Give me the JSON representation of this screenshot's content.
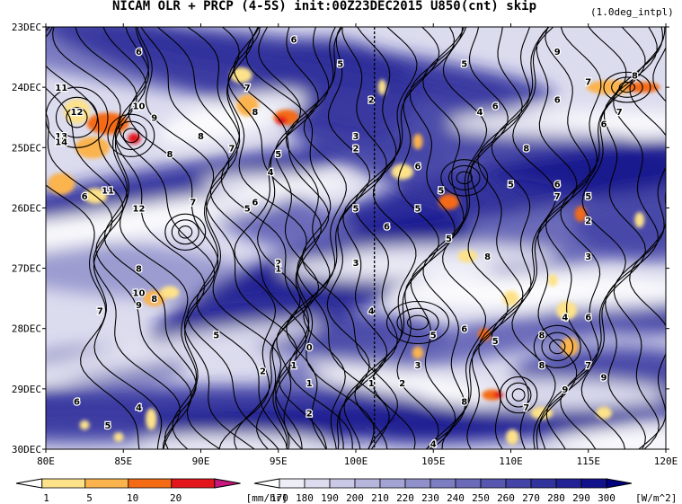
{
  "title": "NICAM  OLR + PRCP (4-5S) init:00Z23DEC2015 U850(cnt) skip",
  "subtitle": "(1.0deg_intpl)",
  "chart_data": {
    "type": "heatmap",
    "title": "NICAM  OLR + PRCP (4-5S) init:00Z23DEC2015 U850(cnt) skip",
    "subtitle": "(1.0deg_intpl)",
    "x_ticks": [
      "80E",
      "85E",
      "90E",
      "95E",
      "100E",
      "105E",
      "110E",
      "115E",
      "120E"
    ],
    "x_values": [
      80,
      85,
      90,
      95,
      100,
      105,
      110,
      115,
      120
    ],
    "y_ticks": [
      "23DEC",
      "24DEC",
      "25DEC",
      "26DEC",
      "27DEC",
      "28DEC",
      "29DEC",
      "30DEC"
    ],
    "y_values": [
      23,
      24,
      25,
      26,
      27,
      28,
      29,
      30
    ],
    "xlim": [
      80,
      120
    ],
    "ylim": [
      30,
      23
    ],
    "reference_line_lon": 101.2,
    "precip_colorbar": {
      "labels": [
        "1",
        "5",
        "10",
        "20"
      ],
      "units": "[mm/hr]",
      "colors": [
        "#ffffff",
        "#fde28a",
        "#fbb34d",
        "#f46b14",
        "#e3161b",
        "#c9157e"
      ]
    },
    "olr_colorbar": {
      "labels": [
        "170",
        "180",
        "190",
        "200",
        "210",
        "220",
        "230",
        "240",
        "250",
        "260",
        "270",
        "280",
        "290",
        "300"
      ],
      "units": "[W/m^2]",
      "colors": [
        "#ffffff",
        "#eeeef7",
        "#dcdcef",
        "#c9c9e6",
        "#b6b6dd",
        "#a3a3d4",
        "#9090cb",
        "#7d7dc2",
        "#6a6ab9",
        "#5757b0",
        "#4444a7",
        "#33339e",
        "#222295",
        "#11118c",
        "#000080"
      ]
    },
    "contour_labels": [
      {
        "text": "6",
        "x": 86,
        "y": 23.4
      },
      {
        "text": "6",
        "x": 96,
        "y": 23.2
      },
      {
        "text": "5",
        "x": 99,
        "y": 23.6
      },
      {
        "text": "2",
        "x": 101,
        "y": 24.2
      },
      {
        "text": "5",
        "x": 107,
        "y": 23.6
      },
      {
        "text": "9",
        "x": 113,
        "y": 23.4
      },
      {
        "text": "7",
        "x": 115,
        "y": 23.9
      },
      {
        "text": "8",
        "x": 118,
        "y": 23.8
      },
      {
        "text": "7",
        "x": 117,
        "y": 24.4
      },
      {
        "text": "11",
        "x": 81,
        "y": 24.0
      },
      {
        "text": "12",
        "x": 82,
        "y": 24.4
      },
      {
        "text": "10",
        "x": 86,
        "y": 24.3
      },
      {
        "text": "9",
        "x": 87,
        "y": 24.5
      },
      {
        "text": "7",
        "x": 93,
        "y": 24.0
      },
      {
        "text": "8",
        "x": 93.5,
        "y": 24.4
      },
      {
        "text": "13",
        "x": 81,
        "y": 24.8
      },
      {
        "text": "14",
        "x": 81,
        "y": 24.9
      },
      {
        "text": "8",
        "x": 88,
        "y": 25.1
      },
      {
        "text": "7",
        "x": 92,
        "y": 25.0
      },
      {
        "text": "8",
        "x": 90,
        "y": 24.8
      },
      {
        "text": "4",
        "x": 94.5,
        "y": 25.4
      },
      {
        "text": "5",
        "x": 95,
        "y": 25.1
      },
      {
        "text": "3",
        "x": 100,
        "y": 24.8
      },
      {
        "text": "2",
        "x": 100,
        "y": 25.0
      },
      {
        "text": "4",
        "x": 108,
        "y": 24.4
      },
      {
        "text": "6",
        "x": 109,
        "y": 24.3
      },
      {
        "text": "8",
        "x": 111,
        "y": 25.0
      },
      {
        "text": "6",
        "x": 113,
        "y": 24.2
      },
      {
        "text": "6",
        "x": 116,
        "y": 24.6
      },
      {
        "text": "5",
        "x": 110,
        "y": 25.6
      },
      {
        "text": "6",
        "x": 113,
        "y": 25.6
      },
      {
        "text": "7",
        "x": 113,
        "y": 25.8
      },
      {
        "text": "11",
        "x": 84,
        "y": 25.7
      },
      {
        "text": "12",
        "x": 86,
        "y": 26.0
      },
      {
        "text": "6",
        "x": 82.5,
        "y": 25.8
      },
      {
        "text": "7",
        "x": 89.5,
        "y": 25.9
      },
      {
        "text": "6",
        "x": 93.5,
        "y": 25.9
      },
      {
        "text": "5",
        "x": 93,
        "y": 26.0
      },
      {
        "text": "5",
        "x": 100,
        "y": 26.0
      },
      {
        "text": "5",
        "x": 104,
        "y": 26.0
      },
      {
        "text": "5",
        "x": 105.5,
        "y": 25.7
      },
      {
        "text": "6",
        "x": 104,
        "y": 25.3
      },
      {
        "text": "5",
        "x": 115,
        "y": 25.8
      },
      {
        "text": "2",
        "x": 115,
        "y": 26.2
      },
      {
        "text": "8",
        "x": 86,
        "y": 27.0
      },
      {
        "text": "2",
        "x": 95,
        "y": 26.9
      },
      {
        "text": "1",
        "x": 95,
        "y": 27.0
      },
      {
        "text": "3",
        "x": 100,
        "y": 26.9
      },
      {
        "text": "5",
        "x": 106,
        "y": 26.5
      },
      {
        "text": "6",
        "x": 102,
        "y": 26.3
      },
      {
        "text": "8",
        "x": 108.5,
        "y": 26.8
      },
      {
        "text": "3",
        "x": 115,
        "y": 26.8
      },
      {
        "text": "10",
        "x": 86,
        "y": 27.4
      },
      {
        "text": "9",
        "x": 86,
        "y": 27.6
      },
      {
        "text": "8",
        "x": 87,
        "y": 27.5
      },
      {
        "text": "7",
        "x": 83.5,
        "y": 27.7
      },
      {
        "text": "4",
        "x": 101,
        "y": 27.7
      },
      {
        "text": "5",
        "x": 105,
        "y": 28.1
      },
      {
        "text": "6",
        "x": 107,
        "y": 28.0
      },
      {
        "text": "5",
        "x": 109,
        "y": 28.2
      },
      {
        "text": "8",
        "x": 112,
        "y": 28.1
      },
      {
        "text": "4",
        "x": 113.5,
        "y": 27.8
      },
      {
        "text": "6",
        "x": 115,
        "y": 27.8
      },
      {
        "text": "5",
        "x": 91,
        "y": 28.1
      },
      {
        "text": "0",
        "x": 97,
        "y": 28.3
      },
      {
        "text": "1",
        "x": 96,
        "y": 28.6
      },
      {
        "text": "2",
        "x": 94,
        "y": 28.7
      },
      {
        "text": "3",
        "x": 104,
        "y": 28.6
      },
      {
        "text": "1",
        "x": 101,
        "y": 28.9
      },
      {
        "text": "2",
        "x": 103,
        "y": 28.9
      },
      {
        "text": "1",
        "x": 97,
        "y": 28.9
      },
      {
        "text": "7",
        "x": 115,
        "y": 28.6
      },
      {
        "text": "9",
        "x": 116,
        "y": 28.8
      },
      {
        "text": "8",
        "x": 112,
        "y": 28.6
      },
      {
        "text": "9",
        "x": 113.5,
        "y": 29.0
      },
      {
        "text": "6",
        "x": 82,
        "y": 29.2
      },
      {
        "text": "4",
        "x": 86,
        "y": 29.3
      },
      {
        "text": "2",
        "x": 97,
        "y": 29.4
      },
      {
        "text": "7",
        "x": 111,
        "y": 29.3
      },
      {
        "text": "8",
        "x": 107,
        "y": 29.2
      },
      {
        "text": "5",
        "x": 84,
        "y": 29.6
      },
      {
        "text": "4",
        "x": 105,
        "y": 29.9
      }
    ]
  }
}
